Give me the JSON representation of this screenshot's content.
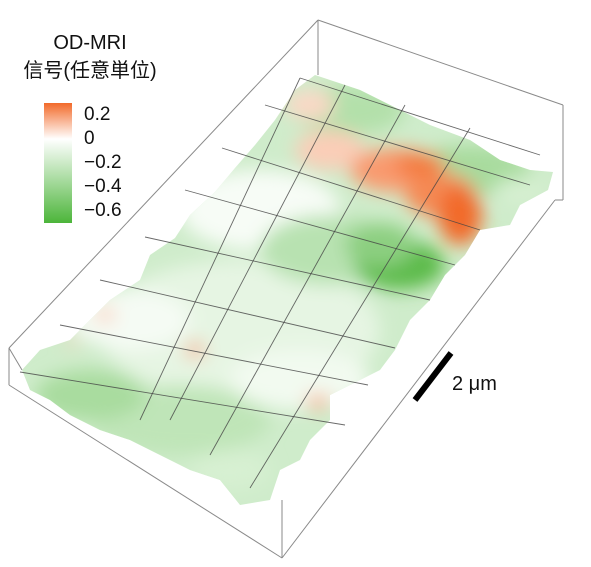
{
  "chart_data": {
    "type": "surface",
    "legend": {
      "title_line1": "OD-MRI",
      "title_line2": "信号(任意単位)",
      "ticks": [
        "0.2",
        "0",
        "−0.2",
        "−0.4",
        "−0.6"
      ],
      "tick_values": [
        0.2,
        0,
        -0.2,
        -0.4,
        -0.6
      ],
      "range": [
        -0.7,
        0.3
      ],
      "colors": {
        "max": "#f26a2a",
        "zero": "#ffffff",
        "min": "#4cb53a"
      }
    },
    "scale_bar": {
      "label": "2 μm",
      "value_um": 2
    },
    "grid": {
      "rows": 7,
      "cols": 4
    }
  }
}
